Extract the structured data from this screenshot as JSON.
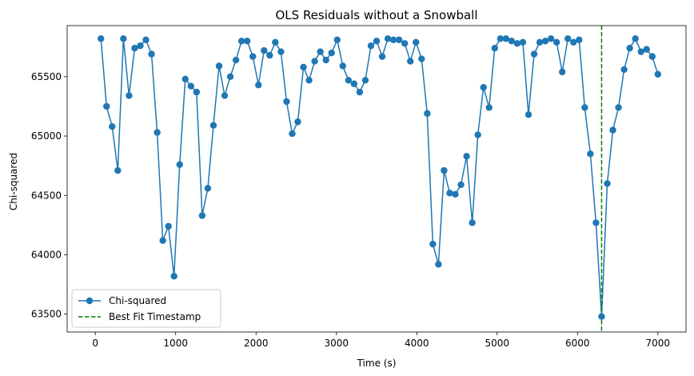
{
  "chart_data": {
    "type": "line",
    "title": "OLS Residuals without a Snowball",
    "xlabel": "Time (s)",
    "ylabel": "Chi-squared",
    "xlim": [
      -350,
      7350
    ],
    "ylim": [
      63350,
      65930
    ],
    "xticks": [
      0,
      1000,
      2000,
      3000,
      4000,
      5000,
      6000,
      7000
    ],
    "yticks": [
      63500,
      64000,
      64500,
      65000,
      65500
    ],
    "grid": false,
    "legend_position": "lower-left",
    "series": [
      {
        "name": "Chi-squared",
        "color": "#1f77b4",
        "marker": "circle",
        "x": [
          70,
          140,
          210,
          280,
          350,
          420,
          490,
          560,
          630,
          700,
          770,
          840,
          910,
          980,
          1050,
          1120,
          1190,
          1260,
          1330,
          1400,
          1470,
          1540,
          1610,
          1680,
          1750,
          1820,
          1890,
          1960,
          2030,
          2100,
          2170,
          2240,
          2310,
          2380,
          2450,
          2520,
          2590,
          2660,
          2730,
          2800,
          2870,
          2940,
          3010,
          3080,
          3150,
          3220,
          3290,
          3360,
          3430,
          3500,
          3570,
          3640,
          3710,
          3780,
          3850,
          3920,
          3990,
          4060,
          4130,
          4200,
          4270,
          4340,
          4410,
          4480,
          4550,
          4620,
          4690,
          4760,
          4830,
          4900,
          4970,
          5040,
          5110,
          5180,
          5250,
          5320,
          5390,
          5460,
          5530,
          5600,
          5670,
          5740,
          5810,
          5880,
          5950,
          6020,
          6090,
          6160,
          6230,
          6300,
          6370,
          6440,
          6510,
          6580,
          6650,
          6720,
          6790,
          6860,
          6930,
          7000
        ],
        "y": [
          65820,
          65250,
          65080,
          64710,
          65820,
          65340,
          65740,
          65760,
          65810,
          65690,
          65030,
          64120,
          64240,
          63820,
          64760,
          65480,
          65420,
          65370,
          64330,
          64560,
          65090,
          65590,
          65340,
          65500,
          65640,
          65800,
          65800,
          65670,
          65430,
          65720,
          65680,
          65790,
          65710,
          65290,
          65020,
          65120,
          65580,
          65470,
          65630,
          65710,
          65640,
          65700,
          65810,
          65590,
          65470,
          65440,
          65370,
          65470,
          65760,
          65800,
          65670,
          65820,
          65810,
          65810,
          65780,
          65630,
          65790,
          65650,
          65190,
          64090,
          63920,
          64710,
          64520,
          64510,
          64590,
          64830,
          64270,
          65010,
          65410,
          65240,
          65740,
          65820,
          65820,
          65800,
          65780,
          65790,
          65180,
          65690,
          65790,
          65800,
          65820,
          65790,
          65540,
          65820,
          65790,
          65810,
          65240,
          64850,
          64270,
          63480,
          64600,
          65050,
          65240,
          65560,
          65740,
          65820,
          65710,
          65730,
          65670,
          65520
        ]
      },
      {
        "name": "Best Fit Timestamp",
        "type": "vline",
        "color": "#008000",
        "linestyle": "dashed",
        "x": 6300
      }
    ]
  }
}
